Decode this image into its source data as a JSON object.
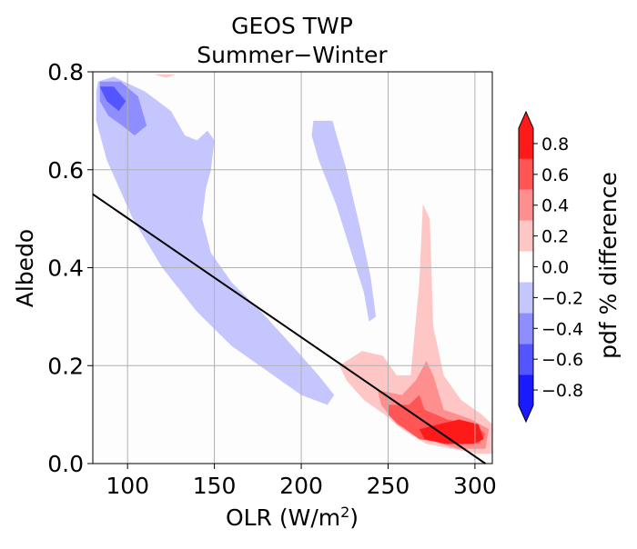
{
  "chart_data": {
    "type": "heatmap",
    "title": "GEOS TWP",
    "subtitle": "Summer−Winter",
    "xlabel": "OLR (W/m²)",
    "ylabel": "Albedo",
    "xlim": [
      80,
      310
    ],
    "ylim": [
      0.0,
      0.8
    ],
    "xticks": [
      "100",
      "150",
      "200",
      "250",
      "300"
    ],
    "yticks": [
      "0.0",
      "0.2",
      "0.4",
      "0.6",
      "0.8"
    ],
    "grid": true,
    "colorbar": {
      "label": "pdf % difference",
      "levels": [
        -0.9,
        -0.7,
        -0.5,
        -0.3,
        -0.1,
        0.1,
        0.3,
        0.5,
        0.7,
        0.9
      ],
      "ticks": [
        "−0.8",
        "−0.6",
        "−0.4",
        "−0.2",
        "0.0",
        "0.2",
        "0.4",
        "0.6",
        "0.8"
      ],
      "colors": [
        "#1a1aff",
        "#5555ff",
        "#8e8eff",
        "#c6c6ff",
        "#ffffff",
        "#ffc6c6",
        "#ff8e8e",
        "#ff5555",
        "#ff1a1a"
      ],
      "extend": "both"
    },
    "contours": [
      {
        "level": -0.2,
        "color": "#c6c6ff",
        "points": [
          [
            83,
            0.78
          ],
          [
            92,
            0.79
          ],
          [
            110,
            0.76
          ],
          [
            125,
            0.72
          ],
          [
            133,
            0.67
          ],
          [
            140,
            0.66
          ],
          [
            146,
            0.68
          ],
          [
            150,
            0.66
          ],
          [
            148,
            0.6
          ],
          [
            145,
            0.56
          ],
          [
            143,
            0.5
          ],
          [
            148,
            0.43
          ],
          [
            160,
            0.37
          ],
          [
            177,
            0.31
          ],
          [
            195,
            0.24
          ],
          [
            210,
            0.18
          ],
          [
            219,
            0.14
          ],
          [
            215,
            0.12
          ],
          [
            200,
            0.14
          ],
          [
            180,
            0.19
          ],
          [
            160,
            0.24
          ],
          [
            140,
            0.31
          ],
          [
            120,
            0.4
          ],
          [
            103,
            0.5
          ],
          [
            88,
            0.62
          ],
          [
            82,
            0.7
          ],
          [
            82,
            0.76
          ]
        ]
      },
      {
        "level": -0.2,
        "color": "#c6c6ff",
        "points": [
          [
            207,
            0.7
          ],
          [
            218,
            0.7
          ],
          [
            226,
            0.6
          ],
          [
            234,
            0.48
          ],
          [
            240,
            0.38
          ],
          [
            243,
            0.3
          ],
          [
            239,
            0.29
          ],
          [
            236,
            0.35
          ],
          [
            228,
            0.44
          ],
          [
            220,
            0.53
          ],
          [
            210,
            0.62
          ],
          [
            206,
            0.67
          ]
        ]
      },
      {
        "level": -0.4,
        "color": "#8e8eff",
        "points": [
          [
            84,
            0.78
          ],
          [
            96,
            0.78
          ],
          [
            106,
            0.75
          ],
          [
            111,
            0.69
          ],
          [
            104,
            0.67
          ],
          [
            97,
            0.69
          ],
          [
            89,
            0.71
          ],
          [
            84,
            0.74
          ]
        ]
      },
      {
        "level": -0.6,
        "color": "#5555ff",
        "points": [
          [
            84,
            0.77
          ],
          [
            92,
            0.77
          ],
          [
            99,
            0.74
          ],
          [
            95,
            0.72
          ],
          [
            88,
            0.74
          ]
        ]
      },
      {
        "level": 0.2,
        "color": "#ffc6c6",
        "points": [
          [
            222,
            0.2
          ],
          [
            235,
            0.23
          ],
          [
            247,
            0.22
          ],
          [
            255,
            0.18
          ],
          [
            263,
            0.18
          ],
          [
            268,
            0.37
          ],
          [
            270,
            0.53
          ],
          [
            274,
            0.5
          ],
          [
            276,
            0.28
          ],
          [
            282,
            0.18
          ],
          [
            292,
            0.13
          ],
          [
            304,
            0.1
          ],
          [
            310,
            0.08
          ],
          [
            310,
            0.02
          ],
          [
            302,
            0.02
          ],
          [
            287,
            0.03
          ],
          [
            272,
            0.04
          ],
          [
            258,
            0.07
          ],
          [
            248,
            0.1
          ],
          [
            236,
            0.13
          ],
          [
            226,
            0.17
          ]
        ]
      },
      {
        "level": 0.2,
        "color": "#ffc6c6",
        "points": [
          [
            115,
            0.795
          ],
          [
            128,
            0.795
          ],
          [
            122,
            0.788
          ]
        ]
      },
      {
        "level": 0.4,
        "color": "#ff8e8e",
        "points": [
          [
            244,
            0.15
          ],
          [
            258,
            0.14
          ],
          [
            266,
            0.17
          ],
          [
            272,
            0.21
          ],
          [
            276,
            0.18
          ],
          [
            282,
            0.11
          ],
          [
            298,
            0.09
          ],
          [
            308,
            0.07
          ],
          [
            306,
            0.03
          ],
          [
            290,
            0.03
          ],
          [
            272,
            0.05
          ],
          [
            255,
            0.08
          ],
          [
            246,
            0.12
          ]
        ]
      },
      {
        "level": 0.6,
        "color": "#ff5555",
        "points": [
          [
            250,
            0.12
          ],
          [
            262,
            0.12
          ],
          [
            268,
            0.14
          ],
          [
            271,
            0.11
          ],
          [
            284,
            0.09
          ],
          [
            300,
            0.08
          ],
          [
            306,
            0.06
          ],
          [
            302,
            0.04
          ],
          [
            285,
            0.04
          ],
          [
            268,
            0.05
          ],
          [
            256,
            0.08
          ],
          [
            250,
            0.1
          ]
        ]
      },
      {
        "level": 0.8,
        "color": "#ff1a1a",
        "points": [
          [
            268,
            0.07
          ],
          [
            279,
            0.08
          ],
          [
            291,
            0.09
          ],
          [
            302,
            0.08
          ],
          [
            305,
            0.05
          ],
          [
            299,
            0.04
          ],
          [
            283,
            0.04
          ],
          [
            271,
            0.05
          ]
        ]
      }
    ],
    "reference_line": {
      "color": "#000000",
      "points": [
        [
          80,
          0.55
        ],
        [
          306,
          0.0
        ]
      ]
    }
  }
}
